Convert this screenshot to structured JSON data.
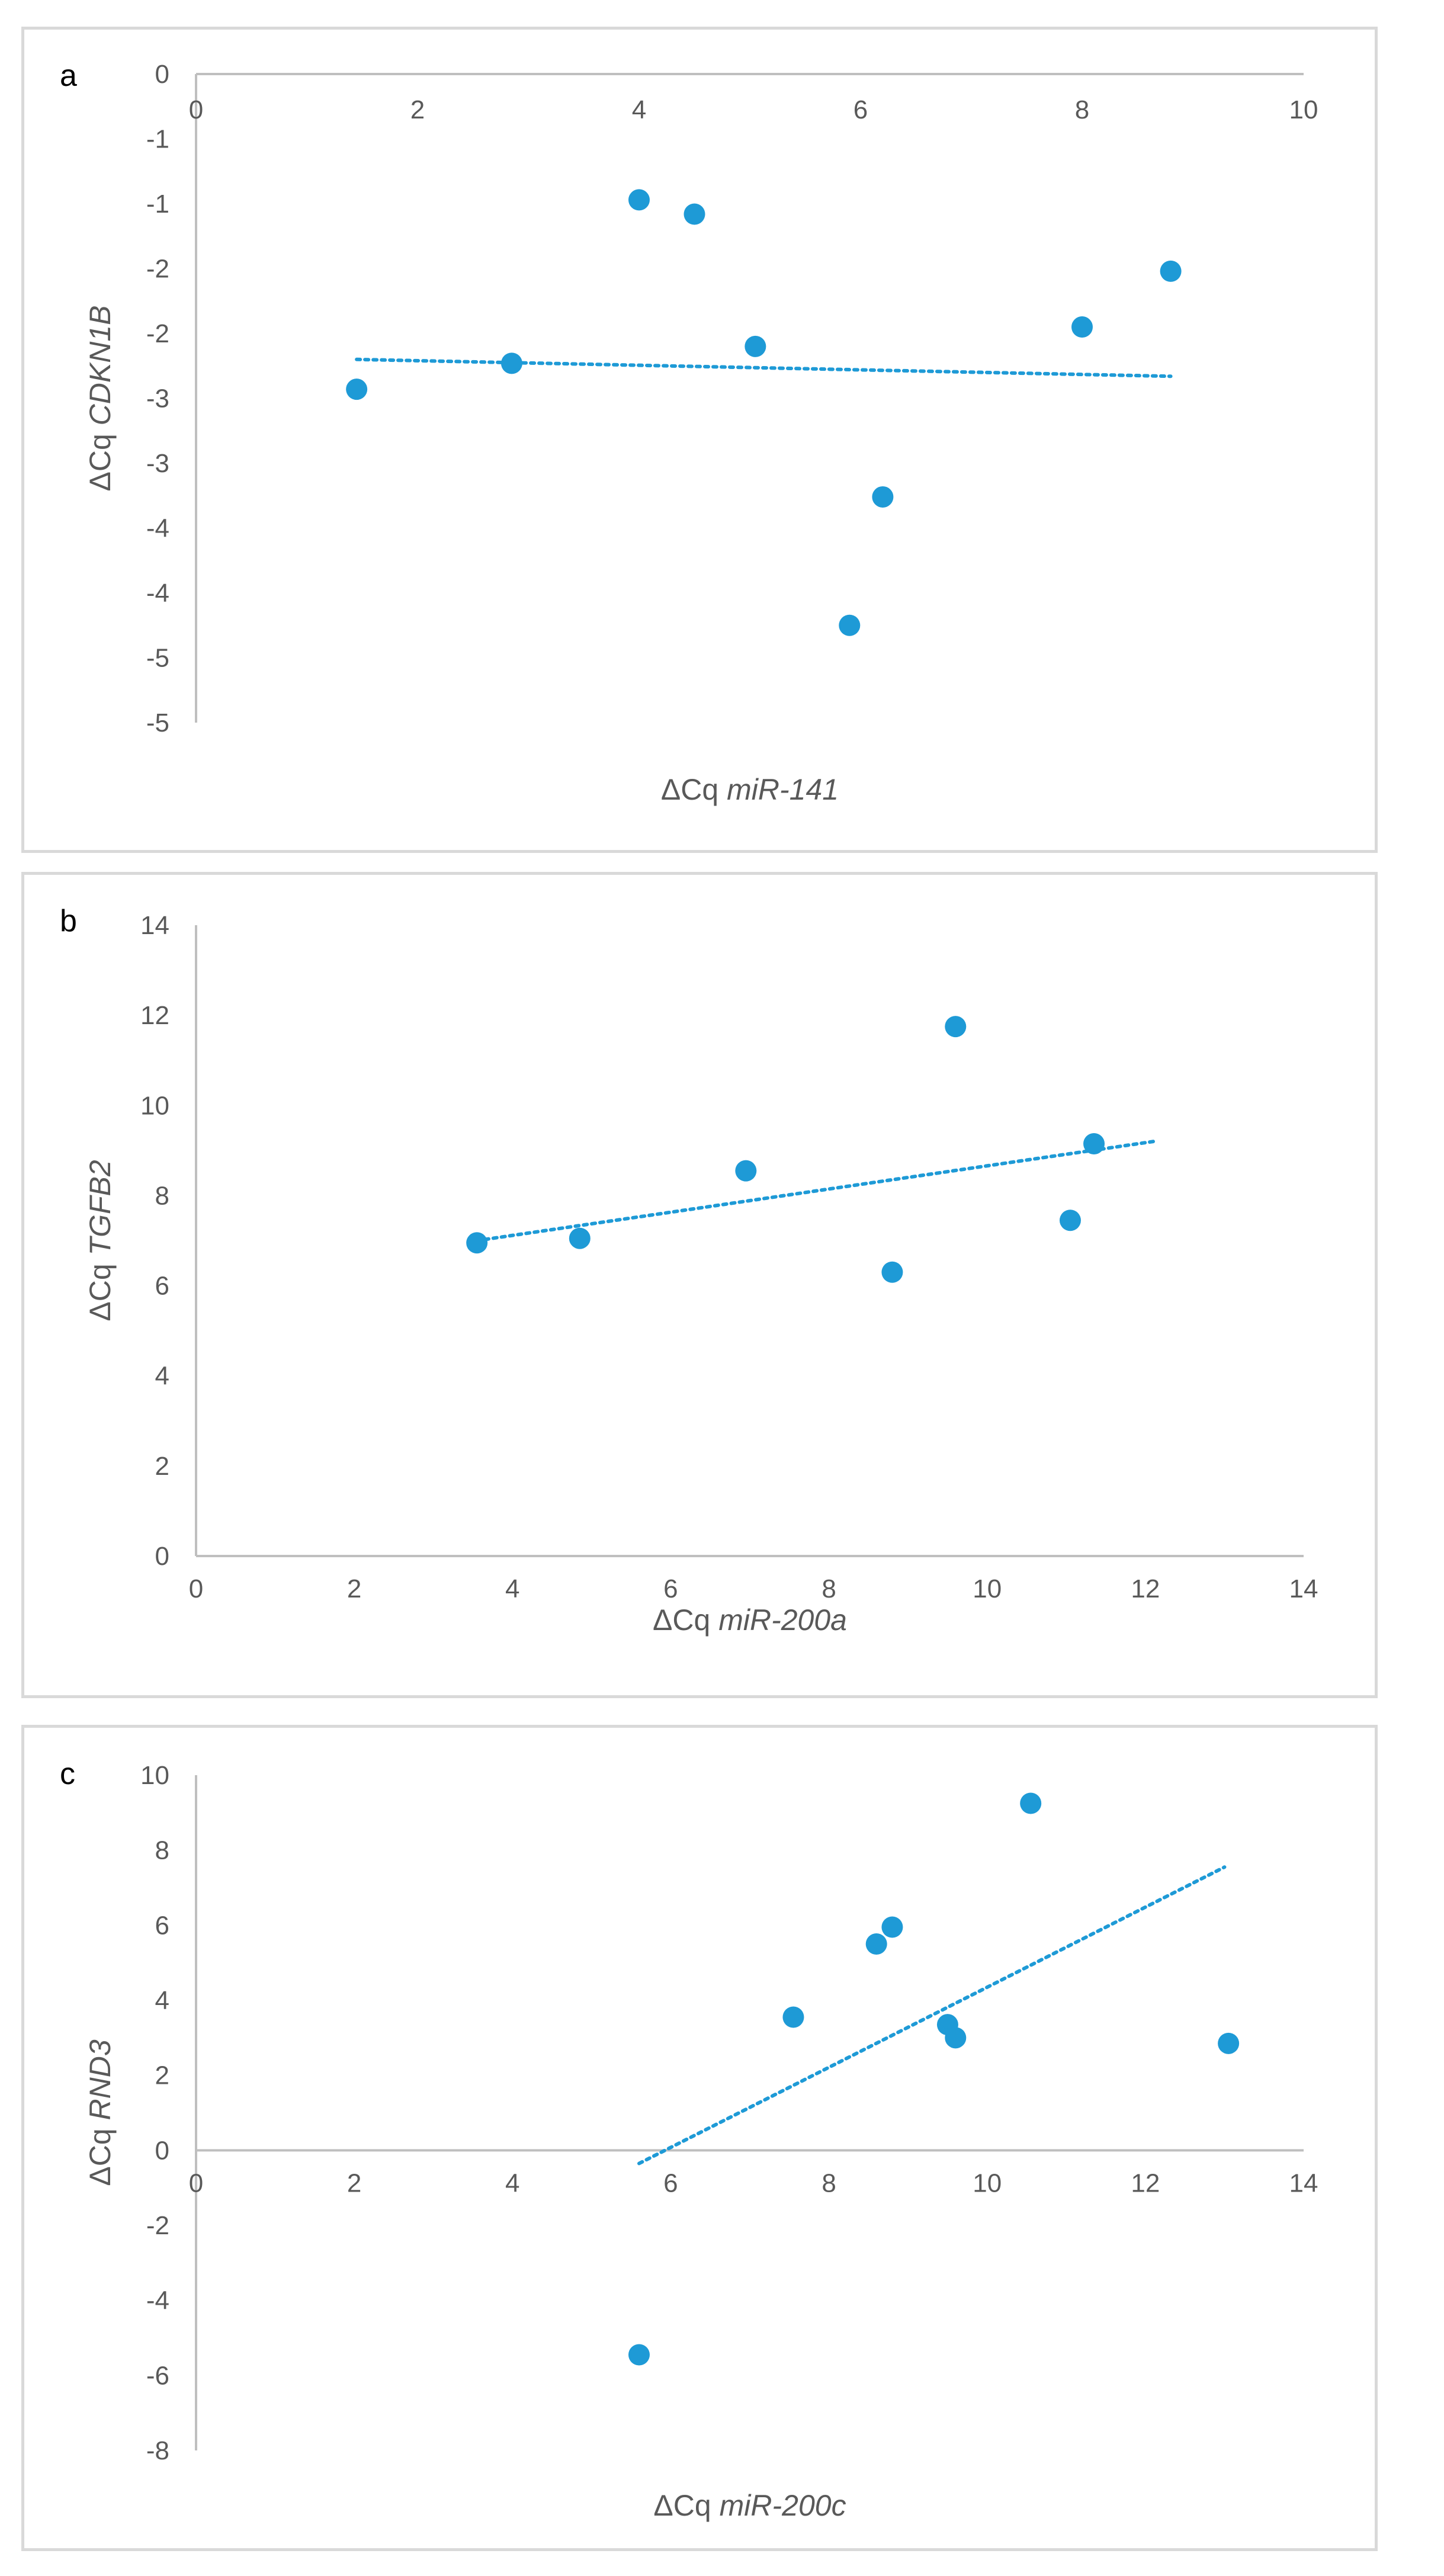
{
  "chart_data": [
    {
      "panel": "a",
      "type": "scatter",
      "title": "",
      "xlabel_prefix": "ΔCq ",
      "xlabel_gene": "miR-141",
      "ylabel_prefix": "ΔCq ",
      "ylabel_gene": "CDKN1B",
      "xlim": [
        0,
        10
      ],
      "ylim": [
        -5,
        0
      ],
      "xticks": [
        0,
        2,
        4,
        6,
        8,
        10
      ],
      "xtick_labels": [
        "0",
        "2",
        "4",
        "6",
        "8",
        "10"
      ],
      "yticks": [
        0,
        -0.5,
        -1,
        -1.5,
        -2,
        -2.5,
        -3,
        -3.5,
        -4,
        -4.5,
        -5
      ],
      "ytick_labels": [
        "0",
        "-1",
        "-1",
        "-2",
        "-2",
        "-3",
        "-3",
        "-4",
        "-4",
        "-5",
        "-5"
      ],
      "x_axis_position": "top",
      "x": [
        1.45,
        2.85,
        4.0,
        4.5,
        5.05,
        5.9,
        6.2,
        8.0,
        8.8
      ],
      "y": [
        -2.43,
        -2.23,
        -0.97,
        -1.08,
        -2.1,
        -4.25,
        -3.26,
        -1.95,
        -1.52
      ],
      "trendline": {
        "x": [
          1.45,
          8.8
        ],
        "y": [
          -2.2,
          -2.33
        ]
      },
      "color": "#1e9ad6"
    },
    {
      "panel": "b",
      "type": "scatter",
      "title": "",
      "xlabel_prefix": "ΔCq ",
      "xlabel_gene": "miR-200a",
      "ylabel_prefix": "ΔCq ",
      "ylabel_gene": "TGFB2",
      "xlim": [
        0,
        14
      ],
      "ylim": [
        0,
        14
      ],
      "xticks": [
        0,
        2,
        4,
        6,
        8,
        10,
        12,
        14
      ],
      "xtick_labels": [
        "0",
        "2",
        "4",
        "6",
        "8",
        "10",
        "12",
        "14"
      ],
      "yticks": [
        0,
        2,
        4,
        6,
        8,
        10,
        12,
        14
      ],
      "ytick_labels": [
        "0",
        "2",
        "4",
        "6",
        "8",
        "10",
        "12",
        "14"
      ],
      "x_axis_position": "bottom",
      "x": [
        3.55,
        4.85,
        6.95,
        8.8,
        9.6,
        11.05,
        11.35
      ],
      "y": [
        6.95,
        7.05,
        8.55,
        6.3,
        11.75,
        7.45,
        9.15
      ],
      "trendline": {
        "x": [
          3.55,
          12.1
        ],
        "y": [
          7.0,
          9.2
        ]
      },
      "color": "#1e9ad6"
    },
    {
      "panel": "c",
      "type": "scatter",
      "title": "",
      "xlabel_prefix": "ΔCq ",
      "xlabel_gene": "miR-200c",
      "ylabel_prefix": "ΔCq ",
      "ylabel_gene": "RND3",
      "xlim": [
        0,
        14
      ],
      "ylim": [
        -8,
        10
      ],
      "xticks": [
        0,
        2,
        4,
        6,
        8,
        10,
        12,
        14
      ],
      "xtick_labels": [
        "0",
        "2",
        "4",
        "6",
        "8",
        "10",
        "12",
        "14"
      ],
      "yticks": [
        -8,
        -6,
        -4,
        -2,
        0,
        2,
        4,
        6,
        8,
        10
      ],
      "ytick_labels": [
        "-8",
        "-6",
        "-4",
        "-2",
        "0",
        "2",
        "4",
        "6",
        "8",
        "10"
      ],
      "x_axis_position": "zero",
      "x": [
        5.6,
        7.55,
        8.6,
        8.8,
        9.5,
        9.6,
        10.55,
        13.05
      ],
      "y": [
        -5.45,
        3.55,
        5.5,
        5.95,
        3.35,
        3.0,
        9.25,
        2.85
      ],
      "trendline": {
        "x": [
          5.6,
          13.0
        ],
        "y": [
          -0.35,
          7.55
        ]
      },
      "color": "#1e9ad6"
    }
  ]
}
